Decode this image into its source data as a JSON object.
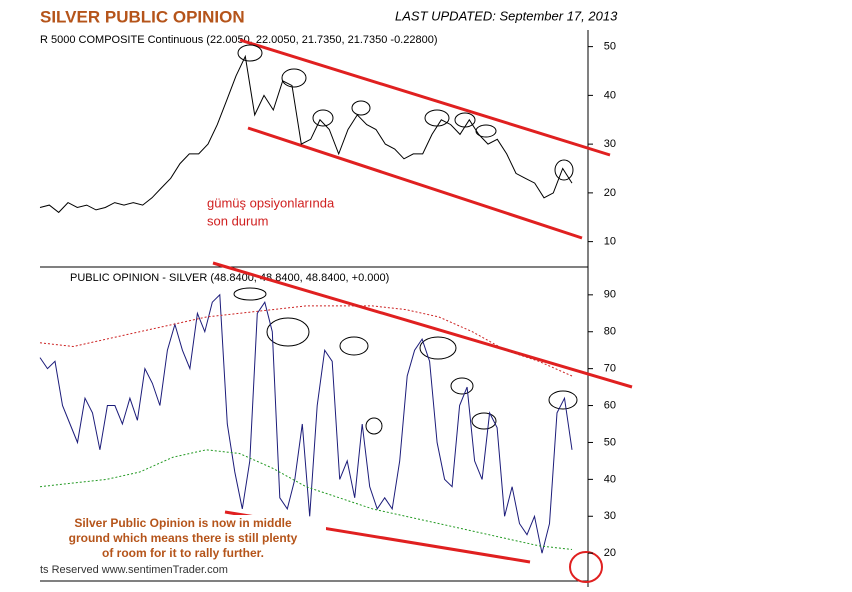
{
  "header": {
    "title": "SILVER PUBLIC OPINION",
    "updated": "LAST UPDATED:  September 17, 2013"
  },
  "footer": "ts Reserved  www.sentimenTrader.com",
  "chart_data": [
    {
      "type": "line",
      "title": "R 5000 COMPOSITE Continuous (22.0050, 22.0050, 21.7350, 21.7350 -0.22800)",
      "annotations": [
        "gümüş opsiyonlarında",
        "son durum"
      ],
      "ylim": [
        5,
        53
      ],
      "yticks": [
        10,
        20,
        30,
        40,
        50
      ],
      "series": [
        {
          "color": "#000000",
          "values": [
            17,
            17.5,
            16,
            18,
            17,
            17.5,
            16.5,
            17,
            18,
            17.5,
            18,
            17.5,
            19,
            21,
            23,
            26,
            28,
            28,
            30,
            34,
            39,
            44,
            48,
            36,
            40,
            37,
            43,
            42,
            30,
            31,
            35,
            33,
            28,
            33,
            36,
            34,
            33,
            30,
            29,
            27,
            28,
            28,
            32,
            35,
            34,
            32,
            35,
            32,
            30,
            31,
            28,
            24,
            23,
            22,
            19,
            20,
            25,
            22
          ]
        }
      ]
    },
    {
      "type": "line",
      "title": "PUBLIC OPINION - SILVER (48.8400, 48.8400, 48.8400, +0.000)",
      "annotations": [
        "Silver Public Opinion is now in middle",
        "ground which means there is still plenty",
        "of room for it to rally further."
      ],
      "ylim": [
        13,
        97
      ],
      "yticks": [
        20,
        30,
        40,
        50,
        60,
        70,
        80,
        90
      ],
      "series": [
        {
          "color": "#1c1c7a",
          "dash": false,
          "values": [
            73,
            70,
            72,
            60,
            55,
            50,
            62,
            58,
            48,
            60,
            60,
            55,
            62,
            56,
            70,
            66,
            60,
            75,
            82,
            75,
            70,
            85,
            80,
            88,
            90,
            55,
            42,
            32,
            45,
            85,
            88,
            80,
            35,
            32,
            40,
            55,
            30,
            60,
            75,
            72,
            40,
            45,
            35,
            55,
            38,
            32,
            35,
            32,
            45,
            68,
            75,
            78,
            72,
            50,
            40,
            38,
            60,
            65,
            45,
            40,
            58,
            54,
            30,
            38,
            28,
            25,
            30,
            20,
            28,
            58,
            62,
            48
          ]
        },
        {
          "color": "#cc2222",
          "dash": true,
          "values": [
            77,
            76,
            78,
            80,
            82,
            84,
            85,
            86,
            87,
            87,
            87,
            86,
            84,
            80,
            75,
            72,
            68
          ]
        },
        {
          "color": "#229922",
          "dash": true,
          "values": [
            38,
            39,
            40,
            42,
            46,
            48,
            47,
            43,
            38,
            35,
            32,
            30,
            28,
            26,
            24,
            22,
            21
          ]
        }
      ]
    }
  ]
}
